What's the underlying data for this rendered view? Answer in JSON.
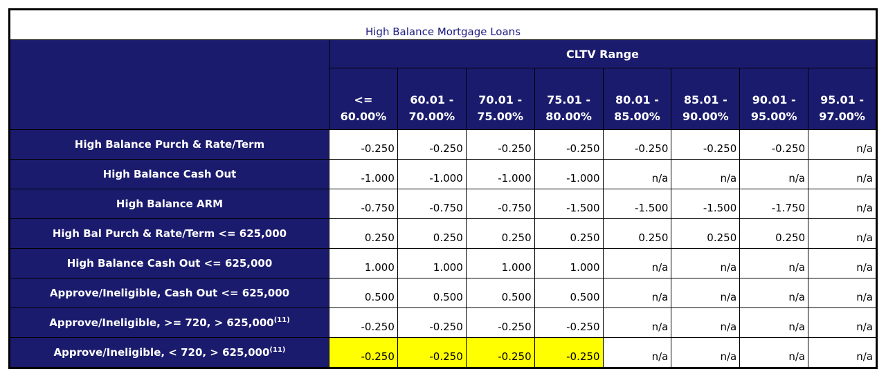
{
  "title": "High Balance Mortgage Loans",
  "group_header": "CLTV Range",
  "columns": [
    {
      "line1": "<=",
      "line2": "60.00%"
    },
    {
      "line1": "60.01 -",
      "line2": "70.00%"
    },
    {
      "line1": "70.01 -",
      "line2": "75.00%"
    },
    {
      "line1": "75.01 -",
      "line2": "80.00%"
    },
    {
      "line1": "80.01 -",
      "line2": "85.00%"
    },
    {
      "line1": "85.01 -",
      "line2": "90.00%"
    },
    {
      "line1": "90.01 -",
      "line2": "95.00%"
    },
    {
      "line1": "95.01 -",
      "line2": "97.00%"
    }
  ],
  "rows": [
    {
      "label": "High Balance Purch & Rate/Term",
      "sup": "",
      "values": [
        "-0.250",
        "-0.250",
        "-0.250",
        "-0.250",
        "-0.250",
        "-0.250",
        "-0.250",
        "n/a"
      ],
      "highlight": false
    },
    {
      "label": "High Balance Cash Out",
      "sup": "",
      "values": [
        "-1.000",
        "-1.000",
        "-1.000",
        "-1.000",
        "n/a",
        "n/a",
        "n/a",
        "n/a"
      ],
      "highlight": false
    },
    {
      "label": "High Balance ARM",
      "sup": "",
      "values": [
        "-0.750",
        "-0.750",
        "-0.750",
        "-1.500",
        "-1.500",
        "-1.500",
        "-1.750",
        "n/a"
      ],
      "highlight": false
    },
    {
      "label": "High Bal Purch & Rate/Term <= 625,000",
      "sup": "",
      "values": [
        "0.250",
        "0.250",
        "0.250",
        "0.250",
        "0.250",
        "0.250",
        "0.250",
        "n/a"
      ],
      "highlight": false
    },
    {
      "label": "High Balance Cash Out <= 625,000",
      "sup": "",
      "values": [
        "1.000",
        "1.000",
        "1.000",
        "1.000",
        "n/a",
        "n/a",
        "n/a",
        "n/a"
      ],
      "highlight": false
    },
    {
      "label": "Approve/Ineligible, Cash Out <= 625,000",
      "sup": "",
      "values": [
        "0.500",
        "0.500",
        "0.500",
        "0.500",
        "n/a",
        "n/a",
        "n/a",
        "n/a"
      ],
      "highlight": false
    },
    {
      "label": "Approve/Ineligible, >= 720, > 625,000",
      "sup": "(11)",
      "values": [
        "-0.250",
        "-0.250",
        "-0.250",
        "-0.250",
        "n/a",
        "n/a",
        "n/a",
        "n/a"
      ],
      "highlight": false
    },
    {
      "label": "Approve/Ineligible, < 720, > 625,000",
      "sup": "(11)",
      "values": [
        "-0.250",
        "-0.250",
        "-0.250",
        "-0.250",
        "n/a",
        "n/a",
        "n/a",
        "n/a"
      ],
      "highlight": true,
      "highlight_cols": 4
    }
  ],
  "colors": {
    "header_bg": "#1b1b6e",
    "title_text": "#1a1a7e",
    "highlight": "#ffff00"
  }
}
